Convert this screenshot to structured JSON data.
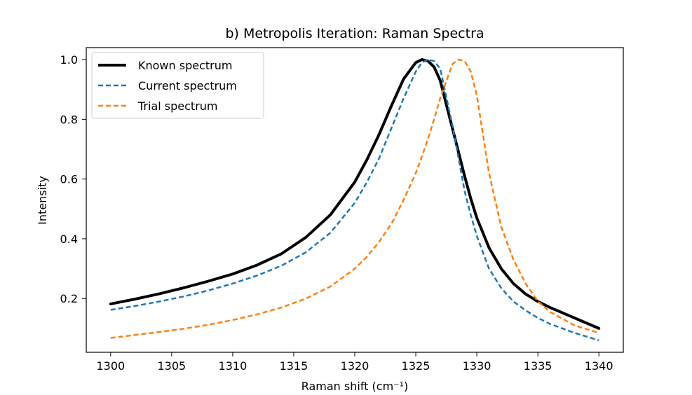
{
  "chart_data": {
    "type": "line",
    "title": "b) Metropolis Iteration: Raman Spectra",
    "xlabel": "Raman shift (cm⁻¹)",
    "ylabel": "Intensity",
    "xlim": [
      1298,
      1342
    ],
    "ylim": [
      0.02,
      1.04
    ],
    "x_ticks": [
      1300,
      1305,
      1310,
      1315,
      1320,
      1325,
      1330,
      1335,
      1340
    ],
    "y_ticks": [
      0.2,
      0.4,
      0.6,
      0.8,
      1.0
    ],
    "y_tick_labels": [
      "0.2",
      "0.4",
      "0.6",
      "0.8",
      "1.0"
    ],
    "grid": false,
    "legend_position": "upper-left",
    "x": [
      1300,
      1302,
      1304,
      1306,
      1308,
      1310,
      1312,
      1314,
      1316,
      1318,
      1320,
      1321,
      1322,
      1323,
      1324,
      1325,
      1325.5,
      1326,
      1326.5,
      1327,
      1328,
      1328.5,
      1329,
      1329.5,
      1330,
      1331,
      1332,
      1333,
      1334,
      1335,
      1336,
      1338,
      1340
    ],
    "series": [
      {
        "name": "Known spectrum",
        "color": "#000000",
        "style": "solid",
        "values": [
          0.182,
          0.198,
          0.216,
          0.236,
          0.258,
          0.282,
          0.312,
          0.35,
          0.405,
          0.48,
          0.59,
          0.665,
          0.75,
          0.845,
          0.935,
          0.99,
          1.0,
          0.995,
          0.975,
          0.93,
          0.77,
          0.69,
          0.61,
          0.535,
          0.47,
          0.37,
          0.3,
          0.25,
          0.215,
          0.19,
          0.17,
          0.135,
          0.1
        ]
      },
      {
        "name": "Current spectrum",
        "color": "#1f77b4",
        "style": "dashed",
        "values": [
          0.162,
          0.175,
          0.19,
          0.207,
          0.227,
          0.25,
          0.277,
          0.31,
          0.355,
          0.42,
          0.52,
          0.59,
          0.67,
          0.77,
          0.87,
          0.96,
          0.99,
          1.0,
          0.995,
          0.97,
          0.78,
          0.67,
          0.56,
          0.48,
          0.41,
          0.3,
          0.235,
          0.19,
          0.16,
          0.135,
          0.115,
          0.085,
          0.06
        ]
      },
      {
        "name": "Trial spectrum",
        "color": "#ff7f0e",
        "style": "dashed",
        "values": [
          0.068,
          0.078,
          0.088,
          0.099,
          0.112,
          0.128,
          0.147,
          0.17,
          0.2,
          0.24,
          0.3,
          0.34,
          0.39,
          0.45,
          0.53,
          0.62,
          0.675,
          0.735,
          0.8,
          0.87,
          0.985,
          1.0,
          0.995,
          0.96,
          0.88,
          0.62,
          0.44,
          0.33,
          0.25,
          0.19,
          0.155,
          0.11,
          0.085
        ]
      }
    ]
  }
}
